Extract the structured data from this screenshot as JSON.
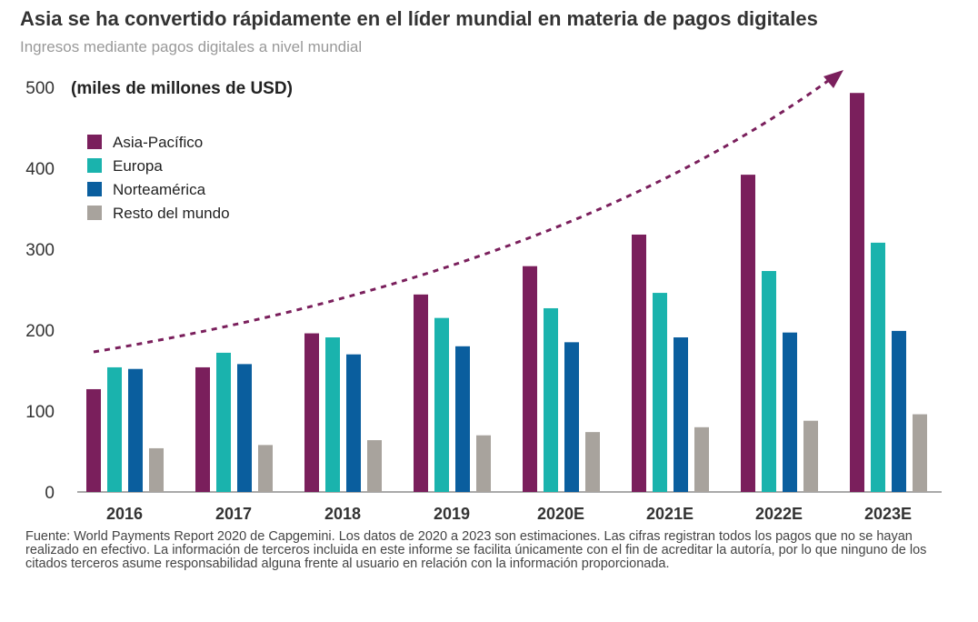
{
  "title": "Asia se ha convertido rápidamente en el líder mundial en materia de pagos digitales",
  "subtitle": "Ingresos mediante pagos digitales a nivel mundial",
  "footnote": "Fuente: World Payments Report 2020 de Capgemini. Los datos de 2020 a 2023 son estimaciones. Las cifras registran todos los pagos que no se hayan realizado en efectivo. La información de terceros incluida en este informe se facilita únicamente con el fin de acreditar la autoría, por lo que ninguno de los citados terceros asume responsabilidad alguna frente al usuario en relación con la información proporcionada.",
  "chart_data": {
    "type": "bar",
    "ylabel": "(miles de millones de USD)",
    "ylim": [
      0,
      500
    ],
    "yticks": [
      0,
      100,
      200,
      300,
      400,
      500
    ],
    "grid": false,
    "legend_placement": "top-left",
    "annotation": "dashed upward trend arrow",
    "categories": [
      "2016",
      "2017",
      "2018",
      "2019",
      "2020E",
      "2021E",
      "2022E",
      "2023E"
    ],
    "series": [
      {
        "name": "Asia-Pacífico",
        "color": "#7a1f5c",
        "values": [
          127,
          154,
          196,
          244,
          279,
          318,
          392,
          493
        ]
      },
      {
        "name": "Europa",
        "color": "#1ab3ad",
        "values": [
          154,
          172,
          191,
          215,
          227,
          246,
          273,
          308
        ]
      },
      {
        "name": "Norteamérica",
        "color": "#0a5e9e",
        "values": [
          152,
          158,
          170,
          180,
          185,
          191,
          197,
          199
        ]
      },
      {
        "name": "Resto del mundo",
        "color": "#a8a39d",
        "values": [
          54,
          58,
          64,
          70,
          74,
          80,
          88,
          96
        ]
      }
    ]
  }
}
